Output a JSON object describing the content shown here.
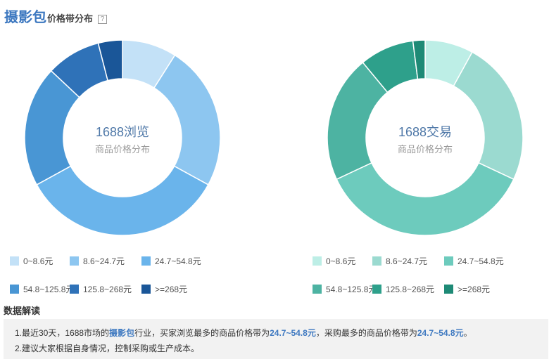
{
  "header": {
    "keyword": "摄影包",
    "title": "价格带分布",
    "help_icon": "?"
  },
  "chart_data": [
    {
      "type": "pie",
      "title": "1688浏览",
      "subtitle": "商品价格分布",
      "categories": [
        "0~8.6元",
        "8.6~24.7元",
        "24.7~54.8元",
        "54.8~125.8元",
        "125.8~268元",
        ">=268元"
      ],
      "values": [
        9,
        24,
        34,
        20,
        9,
        4
      ],
      "colors": [
        "#c3e1f7",
        "#8dc6f0",
        "#6ab4eb",
        "#4996d4",
        "#2f72b8",
        "#1a5698"
      ]
    },
    {
      "type": "pie",
      "title": "1688交易",
      "subtitle": "商品价格分布",
      "categories": [
        "0~8.6元",
        "8.6~24.7元",
        "24.7~54.8元",
        "54.8~125.8元",
        "125.8~268元",
        ">=268元"
      ],
      "values": [
        8,
        24,
        36,
        21,
        9,
        2
      ],
      "colors": [
        "#bdeee6",
        "#9bdad0",
        "#6dcbbd",
        "#4db3a2",
        "#2ea08b",
        "#1e8a76"
      ]
    }
  ],
  "reading": {
    "title": "数据解读",
    "line1": {
      "p1": "1.最近30天，1688市场的",
      "kw": "摄影包",
      "p2": "行业，买家浏览最多的商品价格带为",
      "v1": "24.7~54.8元",
      "p3": "，采购最多的商品价格带为",
      "v2": "24.7~54.8元",
      "p4": "。"
    },
    "line2": "2.建议大家根据自身情况，控制采购或生产成本。"
  }
}
